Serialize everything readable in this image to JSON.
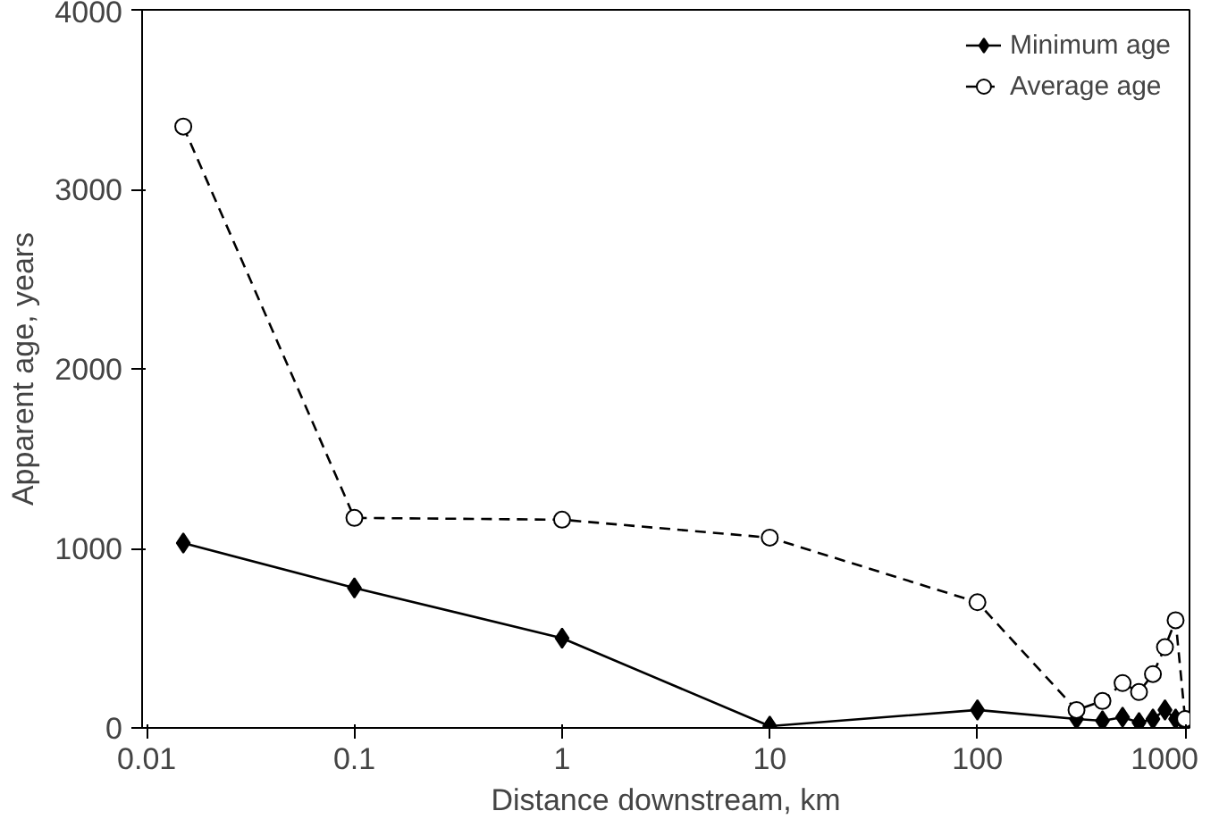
{
  "chart_data": {
    "type": "line",
    "xlabel": "Distance downstream, km",
    "ylabel": "Apparent age, years",
    "log": "x",
    "xlim": [
      0.0095,
      1050
    ],
    "xticks": [
      0.01,
      0.1,
      1,
      10,
      100,
      1000
    ],
    "ylim": [
      0,
      4000
    ],
    "yticks": [
      0,
      1000,
      2000,
      3000,
      4000
    ],
    "grid": false,
    "legend": "top right",
    "series": [
      {
        "name": "Minimum age",
        "color": "#000000",
        "marker": "diamond",
        "line_style": "solid",
        "x": [
          0.015,
          0.1,
          1,
          10,
          100,
          300,
          400,
          500,
          600,
          700,
          800,
          900,
          1000
        ],
        "values": [
          1030,
          780,
          500,
          10,
          100,
          50,
          40,
          60,
          30,
          50,
          100,
          50,
          20
        ]
      },
      {
        "name": "Average age",
        "color": "#000000",
        "marker": "circle",
        "line_style": "dashed",
        "x": [
          0.015,
          0.1,
          1,
          10,
          100,
          300,
          400,
          500,
          600,
          700,
          800,
          900,
          1000
        ],
        "values": [
          3350,
          1170,
          1160,
          1060,
          700,
          100,
          150,
          250,
          200,
          300,
          450,
          600,
          50
        ]
      }
    ]
  }
}
